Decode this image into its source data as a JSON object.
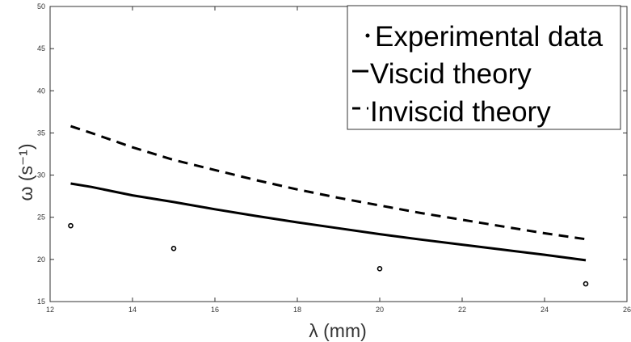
{
  "chart_data": {
    "type": "line",
    "xlabel": "λ (mm)",
    "ylabel": "ω (s⁻¹)",
    "xlim": [
      12,
      26
    ],
    "ylim": [
      15,
      50
    ],
    "xticks": [
      12,
      14,
      16,
      18,
      20,
      22,
      24,
      26
    ],
    "yticks": [
      15,
      20,
      25,
      30,
      35,
      40,
      45,
      50
    ],
    "grid": false,
    "legend_position": "top-right",
    "series": [
      {
        "name": "Experimental data",
        "style": "markers",
        "x": [
          12.5,
          15,
          20,
          25
        ],
        "y": [
          24.0,
          21.3,
          18.9,
          17.1
        ]
      },
      {
        "name": "Viscid theory",
        "style": "solid",
        "x": [
          12.5,
          13,
          14,
          15,
          16,
          17,
          18,
          19,
          20,
          21,
          22,
          23,
          24,
          25
        ],
        "y": [
          29.0,
          28.6,
          27.6,
          26.8,
          25.95,
          25.15,
          24.4,
          23.7,
          23.0,
          22.35,
          21.75,
          21.15,
          20.55,
          19.9
        ]
      },
      {
        "name": "Inviscid theory",
        "style": "dashed",
        "x": [
          12.5,
          13,
          14,
          15,
          16,
          17,
          18,
          19,
          20,
          21,
          22,
          23,
          24,
          25
        ],
        "y": [
          35.8,
          35.0,
          33.3,
          31.8,
          30.6,
          29.4,
          28.3,
          27.3,
          26.4,
          25.5,
          24.7,
          23.9,
          23.1,
          22.4
        ]
      }
    ]
  },
  "colors": {
    "line": "#000000",
    "axis": "#333333"
  }
}
